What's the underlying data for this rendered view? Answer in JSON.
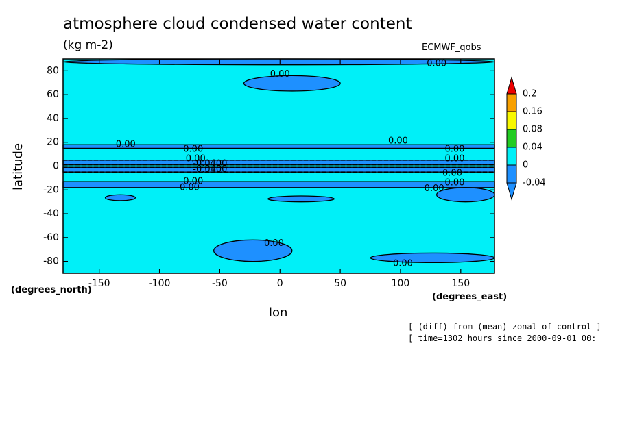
{
  "chart_data": {
    "type": "heatmap",
    "title": "atmosphere cloud condensed water content",
    "units": "(kg m-2)",
    "source": "ECMWF_qobs",
    "xlabel": "lon",
    "ylabel": "latitude",
    "xunits": "(degrees_east)",
    "yunits": "(degrees_north)",
    "xlim": [
      -180,
      178
    ],
    "ylim": [
      -90,
      90
    ],
    "x_ticks": [
      -150,
      -100,
      -50,
      0,
      50,
      100,
      150
    ],
    "y_ticks": [
      -80,
      -60,
      -40,
      -20,
      0,
      20,
      40,
      60,
      80
    ],
    "background_level": 0,
    "colorbar": {
      "levels": [
        "0.2",
        "0.16",
        "0.08",
        "0.04",
        "0",
        "-0.04"
      ],
      "colors": [
        "#ee0000",
        "#f8a000",
        "#f8f800",
        "#22cc22",
        "#00f0f8",
        "#1e90ff"
      ]
    },
    "bands": [
      {
        "lat_min": 15,
        "lat_max": 18,
        "level": -0.04
      },
      {
        "lat_min": 1,
        "lat_max": 5,
        "level": -0.04
      },
      {
        "lat_min": -5,
        "lat_max": -1,
        "level": -0.04
      },
      {
        "lat_min": -18,
        "lat_max": -13,
        "level": -0.04
      }
    ],
    "patches": [
      {
        "lon_min": -30,
        "lon_max": 50,
        "lat_min": 63,
        "lat_max": 76,
        "level": -0.04
      },
      {
        "lon_min": -55,
        "lon_max": 10,
        "lat_min": -80,
        "lat_max": -62,
        "level": -0.04
      },
      {
        "lon_min": 75,
        "lon_max": 178,
        "lat_min": -81,
        "lat_max": -73,
        "level": -0.04
      },
      {
        "lon_min": -180,
        "lon_max": 178,
        "lat_min": 85,
        "lat_max": 90,
        "level": -0.04
      },
      {
        "lon_min": -10,
        "lon_max": 45,
        "lat_min": -30,
        "lat_max": -25,
        "level": -0.04
      },
      {
        "lon_min": -145,
        "lon_max": -120,
        "lat_min": -29,
        "lat_max": -24,
        "level": -0.04
      },
      {
        "lon_min": 130,
        "lon_max": 178,
        "lat_min": -30,
        "lat_max": -18,
        "level": -0.04
      }
    ],
    "contour_labels": [
      {
        "text": "0.00",
        "lon": 0,
        "lat": 77
      },
      {
        "text": "0.00",
        "lon": 130,
        "lat": 86
      },
      {
        "text": "0.00",
        "lon": -128,
        "lat": 18
      },
      {
        "text": "0.00",
        "lon": 98,
        "lat": 21
      },
      {
        "text": "0.00",
        "lon": -72,
        "lat": 14
      },
      {
        "text": "0.00",
        "lon": 145,
        "lat": 14
      },
      {
        "text": "0.00",
        "lon": -70,
        "lat": 6
      },
      {
        "text": "0.00",
        "lon": 145,
        "lat": 6
      },
      {
        "text": "-0.0400",
        "lon": -58,
        "lat": 2
      },
      {
        "text": "-0.0400",
        "lon": -58,
        "lat": -3
      },
      {
        "text": "0.00",
        "lon": 143,
        "lat": -6
      },
      {
        "text": "0.00",
        "lon": -72,
        "lat": -13
      },
      {
        "text": "0.00",
        "lon": 145,
        "lat": -14
      },
      {
        "text": "0.00",
        "lon": -75,
        "lat": -18
      },
      {
        "text": "0.00",
        "lon": 128,
        "lat": -19
      },
      {
        "text": "0.00",
        "lon": -5,
        "lat": -65
      },
      {
        "text": "0.00",
        "lon": 102,
        "lat": -82
      }
    ]
  },
  "notes": {
    "line1": "[ (diff) from (mean) zonal of control ]",
    "line2": "[ time=1302 hours since 2000-09-01 00:"
  }
}
